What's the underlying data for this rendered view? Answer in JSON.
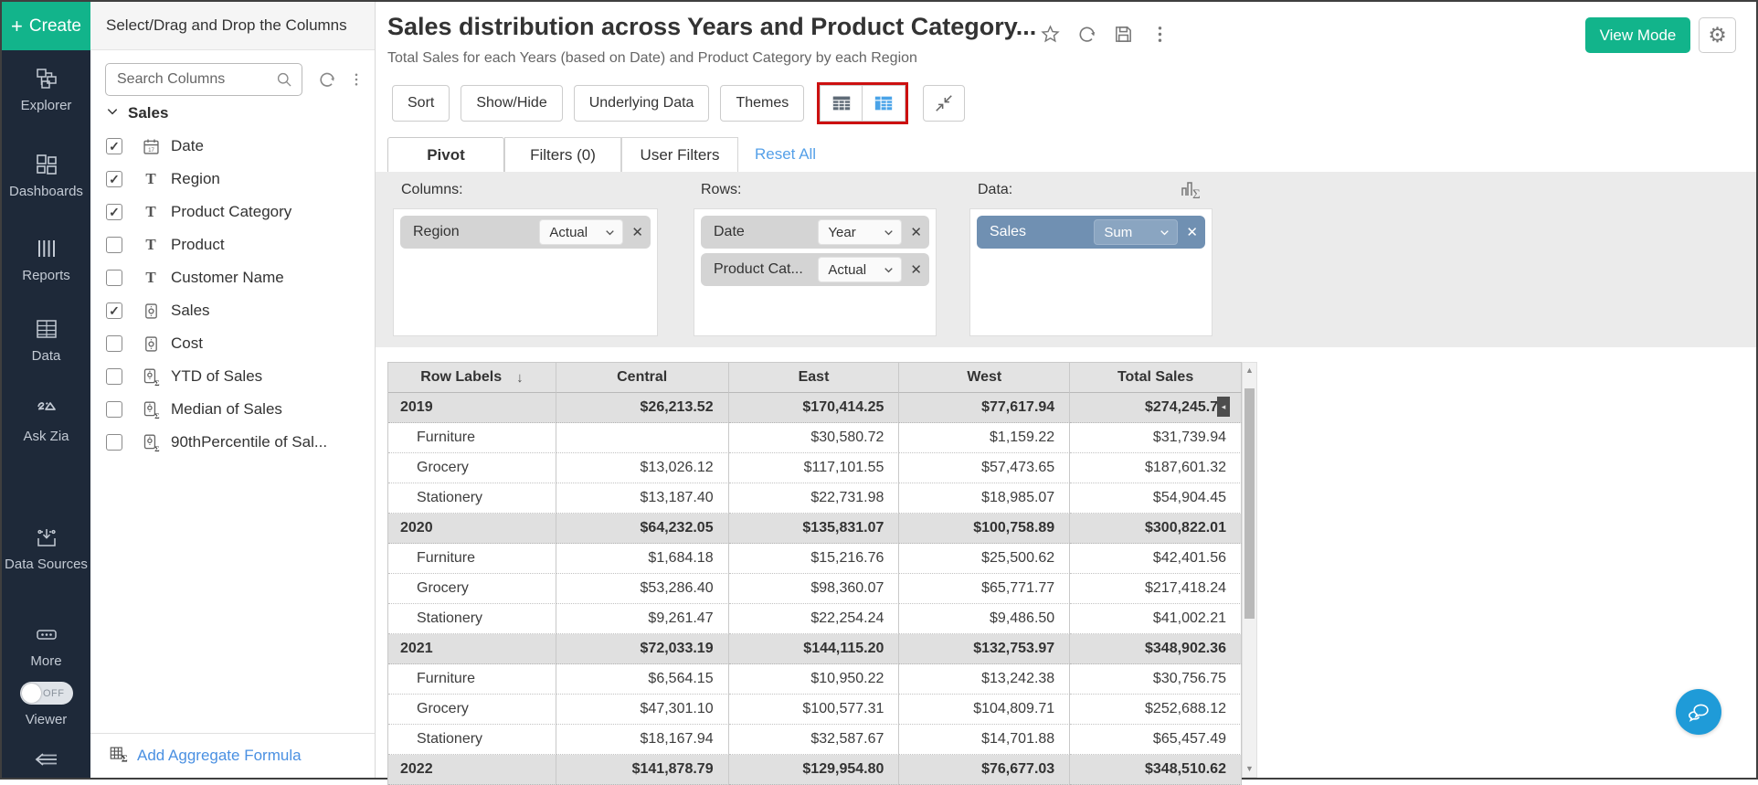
{
  "sidebar": {
    "create_label": "Create",
    "items": [
      {
        "label": "Explorer",
        "icon": "explorer-icon"
      },
      {
        "label": "Dashboards",
        "icon": "dashboards-icon"
      },
      {
        "label": "Reports",
        "icon": "reports-icon"
      },
      {
        "label": "Data",
        "icon": "data-table-icon"
      },
      {
        "label": "Ask Zia",
        "icon": "ask-zia-icon"
      },
      {
        "label": "Data Sources",
        "icon": "data-sources-icon"
      },
      {
        "label": "More",
        "icon": "more-icon"
      }
    ],
    "viewer": {
      "label": "Viewer",
      "toggle": "OFF"
    }
  },
  "columns_panel": {
    "header": "Select/Drag and Drop the Columns",
    "search_placeholder": "Search Columns",
    "section_label": "Sales",
    "fields": [
      {
        "label": "Date",
        "type": "date",
        "checked": true
      },
      {
        "label": "Region",
        "type": "text",
        "checked": true
      },
      {
        "label": "Product Category",
        "type": "text",
        "checked": true
      },
      {
        "label": "Product",
        "type": "text",
        "checked": false
      },
      {
        "label": "Customer Name",
        "type": "text",
        "checked": false
      },
      {
        "label": "Sales",
        "type": "currency",
        "checked": true
      },
      {
        "label": "Cost",
        "type": "currency",
        "checked": false
      },
      {
        "label": "YTD of Sales",
        "type": "formula",
        "checked": false
      },
      {
        "label": "Median of Sales",
        "type": "formula",
        "checked": false
      },
      {
        "label": "90thPercentile of Sal...",
        "type": "formula",
        "checked": false
      }
    ],
    "footer_link": "Add Aggregate Formula"
  },
  "header": {
    "title": "Sales distribution across Years and Product Category...",
    "subtitle": "Total Sales for each Years (based on Date) and Product Category by each Region",
    "view_mode_label": "View Mode"
  },
  "toolbar": {
    "buttons": [
      "Sort",
      "Show/Hide",
      "Underlying Data",
      "Themes"
    ]
  },
  "tabs": {
    "pivot": "Pivot",
    "filters": "Filters  (0)",
    "user_filters": "User Filters",
    "reset_all": "Reset All"
  },
  "config": {
    "columns_label": "Columns:",
    "rows_label": "Rows:",
    "data_label": "Data:",
    "columns": [
      {
        "field": "Region",
        "agg": "Actual"
      }
    ],
    "rows": [
      {
        "field": "Date",
        "agg": "Year"
      },
      {
        "field": "Product Cat...",
        "agg": "Actual"
      }
    ],
    "data": [
      {
        "field": "Sales",
        "agg": "Sum"
      }
    ]
  },
  "pivot_table": {
    "headers": [
      "Row Labels",
      "Central",
      "East",
      "West",
      "Total Sales"
    ],
    "rows": [
      {
        "label": "2019",
        "type": "year",
        "values": [
          "$26,213.52",
          "$170,414.25",
          "$77,617.94",
          "$274,245.71"
        ]
      },
      {
        "label": "Furniture",
        "type": "item",
        "values": [
          "",
          "$30,580.72",
          "$1,159.22",
          "$31,739.94"
        ]
      },
      {
        "label": "Grocery",
        "type": "item",
        "values": [
          "$13,026.12",
          "$117,101.55",
          "$57,473.65",
          "$187,601.32"
        ]
      },
      {
        "label": "Stationery",
        "type": "item",
        "values": [
          "$13,187.40",
          "$22,731.98",
          "$18,985.07",
          "$54,904.45"
        ]
      },
      {
        "label": "2020",
        "type": "year",
        "values": [
          "$64,232.05",
          "$135,831.07",
          "$100,758.89",
          "$300,822.01"
        ]
      },
      {
        "label": "Furniture",
        "type": "item",
        "values": [
          "$1,684.18",
          "$15,216.76",
          "$25,500.62",
          "$42,401.56"
        ]
      },
      {
        "label": "Grocery",
        "type": "item",
        "values": [
          "$53,286.40",
          "$98,360.07",
          "$65,771.77",
          "$217,418.24"
        ]
      },
      {
        "label": "Stationery",
        "type": "item",
        "values": [
          "$9,261.47",
          "$22,254.24",
          "$9,486.50",
          "$41,002.21"
        ]
      },
      {
        "label": "2021",
        "type": "year",
        "values": [
          "$72,033.19",
          "$144,115.20",
          "$132,753.97",
          "$348,902.36"
        ]
      },
      {
        "label": "Furniture",
        "type": "item",
        "values": [
          "$6,564.15",
          "$10,950.22",
          "$13,242.38",
          "$30,756.75"
        ]
      },
      {
        "label": "Grocery",
        "type": "item",
        "values": [
          "$47,301.10",
          "$100,577.31",
          "$104,809.71",
          "$252,688.12"
        ]
      },
      {
        "label": "Stationery",
        "type": "item",
        "values": [
          "$18,167.94",
          "$32,587.67",
          "$14,701.88",
          "$65,457.49"
        ]
      },
      {
        "label": "2022",
        "type": "year",
        "values": [
          "$141,878.79",
          "$129,954.80",
          "$76,677.03",
          "$348,510.62"
        ]
      }
    ]
  },
  "colors": {
    "accent_green": "#12b48b",
    "sidebar_bg": "#1e2939",
    "data_chip_blue": "#7090b2",
    "highlight_red": "#cc1010",
    "link_blue": "#4a90e2",
    "chat_blue": "#1f9bd8",
    "active_view_icon_blue": "#4aa3e8"
  }
}
